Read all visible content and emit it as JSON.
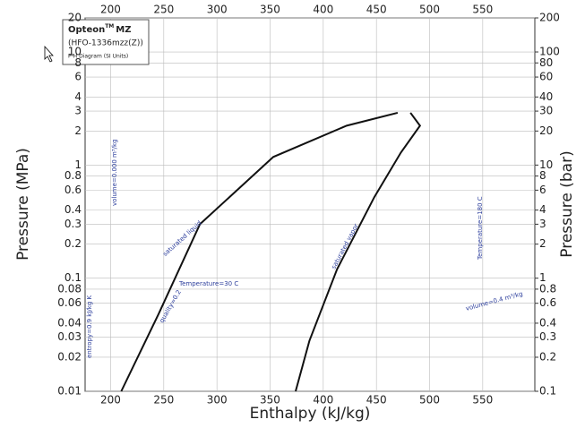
{
  "chart_data": {
    "type": "line",
    "legend_box": {
      "brand": "Opteon",
      "trademark": "TM",
      "product": "MZ",
      "refrigerant": "(HFO-1336mzz(Z))",
      "subtitle": "P-H Diagram (SI Units)"
    },
    "xlabel": "Enthalpy (kJ/kg)",
    "ylabel": "Pressure (MPa)",
    "y2label": "Pressure (bar)",
    "xlim": [
      176,
      599
    ],
    "xticks": [
      200,
      250,
      300,
      350,
      400,
      450,
      500,
      550
    ],
    "ylim": [
      0.01,
      20
    ],
    "yticks": [
      0.01,
      0.02,
      0.03,
      0.04,
      0.06,
      0.08,
      0.1,
      0.2,
      0.3,
      0.4,
      0.6,
      0.8,
      1,
      2,
      3,
      4,
      6,
      8,
      10,
      20
    ],
    "y2lim": [
      0.1,
      200
    ],
    "y2ticks": [
      0.1,
      0.2,
      0.3,
      0.4,
      0.6,
      0.8,
      1,
      2,
      3,
      4,
      6,
      8,
      10,
      20,
      30,
      40,
      60,
      80,
      100,
      200
    ],
    "log_scale": true,
    "grid": true,
    "series": [
      {
        "name": "saturated liquid",
        "color": "#111111",
        "x": [
          210,
          245,
          284,
          353,
          422,
          470
        ],
        "values": [
          0.01,
          0.048,
          0.3,
          1.18,
          2.23,
          2.9
        ]
      },
      {
        "name": "saturated vapor",
        "color": "#111111",
        "x": [
          482,
          491,
          473,
          448,
          413,
          387,
          374
        ],
        "values": [
          2.9,
          2.23,
          1.29,
          0.52,
          0.12,
          0.028,
          0.01
        ]
      }
    ],
    "annotations": [
      "Temperature=30 C",
      "Temperature=180 C",
      "volume=0.4 m³/kg",
      "volume=0.000 m³/kg",
      "quality=0.2",
      "entropy=0.9 kJ/kg K"
    ]
  }
}
